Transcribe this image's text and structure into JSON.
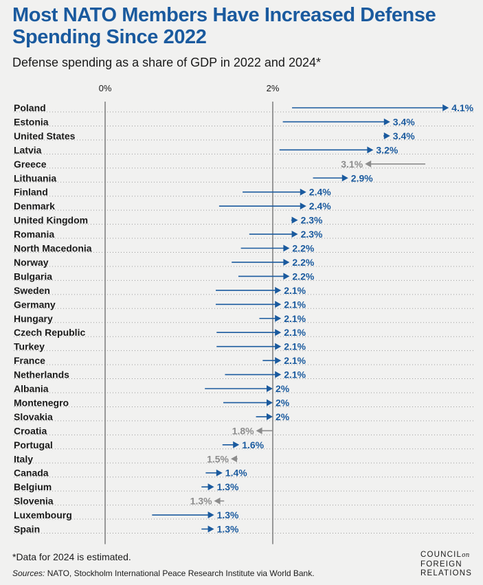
{
  "title": "Most NATO Members Have Increased Defense Spending Since 2022",
  "subtitle": "Defense spending as a share of GDP in 2022 and 2024*",
  "footnote": "*Data for 2024 is estimated.",
  "sources_label": "Sources:",
  "sources_text": "NATO, Stockholm International Peace Research Institute via World Bank.",
  "logo": {
    "line1": "COUNCIL",
    "on": "on",
    "line2": "FOREIGN",
    "line3": "RELATIONS"
  },
  "colors": {
    "increase": "#1a5a9e",
    "decrease": "#8c8c8c",
    "axis": "#7a7a7a",
    "text": "#1a1a1a"
  },
  "chart_data": {
    "type": "arrow-dumbbell",
    "title": "Most NATO Members Have Increased Defense Spending Since 2022",
    "subtitle": "Defense spending as a share of GDP in 2022 and 2024*",
    "x_ticks": [
      0,
      2
    ],
    "x_tick_labels": [
      "0%",
      "2%"
    ],
    "xlim": [
      0,
      4.4
    ],
    "series": [
      {
        "name": "2022",
        "role": "arrow start"
      },
      {
        "name": "2024",
        "role": "arrow end (labeled)"
      }
    ],
    "rows": [
      {
        "country": "Poland",
        "v2022": 2.23,
        "v2024": 4.1,
        "label": "4.1%"
      },
      {
        "country": "Estonia",
        "v2022": 2.12,
        "v2024": 3.4,
        "label": "3.4%"
      },
      {
        "country": "United States",
        "v2022": 3.32,
        "v2024": 3.4,
        "label": "3.4%"
      },
      {
        "country": "Latvia",
        "v2022": 2.08,
        "v2024": 3.2,
        "label": "3.2%"
      },
      {
        "country": "Greece",
        "v2022": 3.82,
        "v2024": 3.1,
        "label": "3.1%"
      },
      {
        "country": "Lithuania",
        "v2022": 2.48,
        "v2024": 2.9,
        "label": "2.9%"
      },
      {
        "country": "Finland",
        "v2022": 1.64,
        "v2024": 2.4,
        "label": "2.4%"
      },
      {
        "country": "Denmark",
        "v2022": 1.36,
        "v2024": 2.4,
        "label": "2.4%"
      },
      {
        "country": "United Kingdom",
        "v2022": 2.22,
        "v2024": 2.3,
        "label": "2.3%"
      },
      {
        "country": "Romania",
        "v2022": 1.72,
        "v2024": 2.3,
        "label": "2.3%"
      },
      {
        "country": "North Macedonia",
        "v2022": 1.62,
        "v2024": 2.2,
        "label": "2.2%"
      },
      {
        "country": "Norway",
        "v2022": 1.51,
        "v2024": 2.2,
        "label": "2.2%"
      },
      {
        "country": "Bulgaria",
        "v2022": 1.59,
        "v2024": 2.2,
        "label": "2.2%"
      },
      {
        "country": "Sweden",
        "v2022": 1.32,
        "v2024": 2.1,
        "label": "2.1%"
      },
      {
        "country": "Germany",
        "v2022": 1.32,
        "v2024": 2.1,
        "label": "2.1%"
      },
      {
        "country": "Hungary",
        "v2022": 1.84,
        "v2024": 2.1,
        "label": "2.1%"
      },
      {
        "country": "Czech Republic",
        "v2022": 1.33,
        "v2024": 2.1,
        "label": "2.1%"
      },
      {
        "country": "Turkey",
        "v2022": 1.33,
        "v2024": 2.1,
        "label": "2.1%"
      },
      {
        "country": "France",
        "v2022": 1.88,
        "v2024": 2.1,
        "label": "2.1%"
      },
      {
        "country": "Netherlands",
        "v2022": 1.43,
        "v2024": 2.1,
        "label": "2.1%"
      },
      {
        "country": "Albania",
        "v2022": 1.19,
        "v2024": 2.0,
        "label": "2%"
      },
      {
        "country": "Montenegro",
        "v2022": 1.41,
        "v2024": 2.0,
        "label": "2%"
      },
      {
        "country": "Slovakia",
        "v2022": 1.8,
        "v2024": 2.0,
        "label": "2%"
      },
      {
        "country": "Croatia",
        "v2022": 2.0,
        "v2024": 1.8,
        "label": "1.8%"
      },
      {
        "country": "Portugal",
        "v2022": 1.4,
        "v2024": 1.6,
        "label": "1.6%"
      },
      {
        "country": "Italy",
        "v2022": 1.58,
        "v2024": 1.5,
        "label": "1.5%"
      },
      {
        "country": "Canada",
        "v2022": 1.2,
        "v2024": 1.4,
        "label": "1.4%"
      },
      {
        "country": "Belgium",
        "v2022": 1.15,
        "v2024": 1.3,
        "label": "1.3%"
      },
      {
        "country": "Slovenia",
        "v2022": 1.42,
        "v2024": 1.3,
        "label": "1.3%"
      },
      {
        "country": "Luxembourg",
        "v2022": 0.56,
        "v2024": 1.3,
        "label": "1.3%"
      },
      {
        "country": "Spain",
        "v2022": 1.15,
        "v2024": 1.3,
        "label": "1.3%"
      }
    ]
  }
}
